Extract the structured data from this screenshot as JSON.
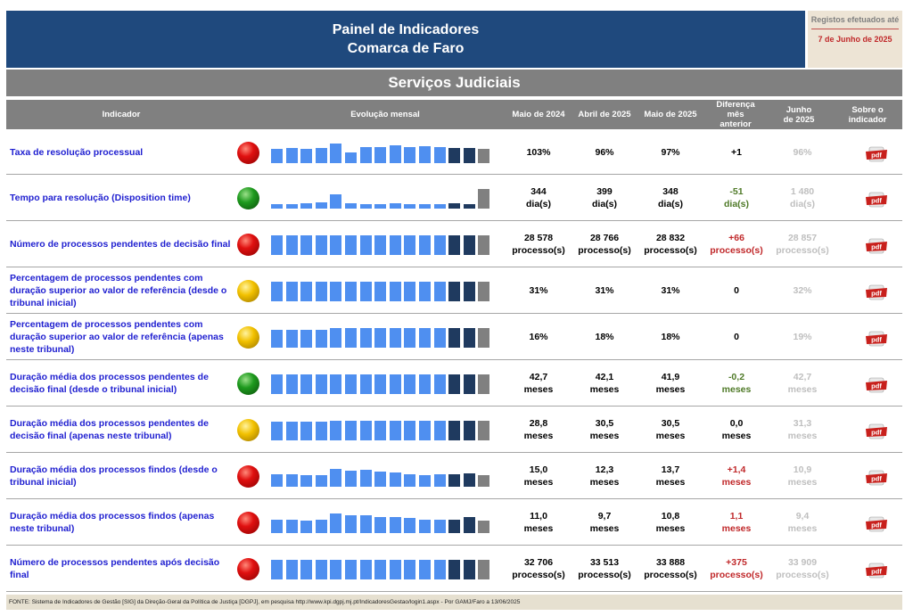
{
  "header": {
    "title1": "Painel de Indicadores",
    "title2": "Comarca de Faro"
  },
  "registos": {
    "label": "Registos efetuados até",
    "date": "7 de Junho de 2025"
  },
  "section_title": "Serviços Judiciais",
  "columns": {
    "indicador": "Indicador",
    "evolucao": "Evolução mensal",
    "c1": "Maio de 2024",
    "c2": "Abril de 2025",
    "c3": "Maio de 2025",
    "c4": "Diferença mês anterior",
    "c5": "Junho de 2025",
    "c6": "Sobre o indicador"
  },
  "rows": [
    {
      "name": "Taxa de resolução processual",
      "status": "red",
      "trend": [
        0.75,
        0.78,
        0.74,
        0.78,
        1.0,
        0.55,
        0.82,
        0.82,
        0.92,
        0.8,
        0.86,
        0.84,
        0.78,
        0.78,
        0.74
      ],
      "v1": "103%",
      "v2": "96%",
      "v3": "97%",
      "diff": "+1",
      "diff_color": "black",
      "jun": "96%"
    },
    {
      "name": "Tempo para resolução (Disposition time)",
      "status": "green",
      "trend": [
        0.25,
        0.25,
        0.28,
        0.3,
        0.72,
        0.27,
        0.22,
        0.24,
        0.26,
        0.22,
        0.24,
        0.24,
        0.28,
        0.25,
        1.0
      ],
      "v1": "344\ndia(s)",
      "v2": "399\ndia(s)",
      "v3": "348\ndia(s)",
      "diff": "-51\ndia(s)",
      "diff_color": "green",
      "jun": "1 480\ndia(s)"
    },
    {
      "name": "Número de processos pendentes de decisão final",
      "status": "red",
      "trend": [
        1,
        1,
        1,
        1,
        1,
        1,
        1,
        1,
        1,
        1,
        1,
        1,
        1,
        1,
        1
      ],
      "v1": "28 578\nprocesso(s)",
      "v2": "28 766\nprocesso(s)",
      "v3": "28 832\nprocesso(s)",
      "diff": "+66\nprocesso(s)",
      "diff_color": "red",
      "jun": "28 857\nprocesso(s)"
    },
    {
      "name": "Percentagem de processos pendentes com duração superior ao valor de referência (desde o tribunal inicial)",
      "status": "yellow",
      "trend": [
        1,
        1,
        1,
        1,
        1,
        1,
        1,
        1,
        1,
        1,
        1,
        1,
        1,
        1,
        1
      ],
      "v1": "31%",
      "v2": "31%",
      "v3": "31%",
      "diff": "0",
      "diff_color": "black",
      "jun": "32%"
    },
    {
      "name": "Percentagem de processos pendentes com duração superior ao valor de referência (apenas neste tribunal)",
      "status": "yellow",
      "trend": [
        0.92,
        0.92,
        0.92,
        0.92,
        1,
        1,
        1,
        1,
        1,
        1,
        1,
        1,
        1,
        1,
        1
      ],
      "v1": "16%",
      "v2": "18%",
      "v3": "18%",
      "diff": "0",
      "diff_color": "black",
      "jun": "19%"
    },
    {
      "name": "Duração média dos processos pendentes de decisão final (desde o tribunal inicial)",
      "status": "green",
      "trend": [
        1,
        1,
        1,
        1,
        1,
        1,
        1,
        1,
        1,
        1,
        1,
        1,
        1,
        1,
        1
      ],
      "v1": "42,7\nmeses",
      "v2": "42,1\nmeses",
      "v3": "41,9\nmeses",
      "diff": "-0,2\nmeses",
      "diff_color": "green",
      "jun": "42,7\nmeses"
    },
    {
      "name": "Duração média dos processos pendentes de decisão final (apenas neste tribunal)",
      "status": "yellow",
      "trend": [
        0.95,
        0.95,
        0.95,
        0.95,
        1,
        1,
        1,
        1,
        1,
        1,
        1,
        1,
        1,
        1,
        1
      ],
      "v1": "28,8\nmeses",
      "v2": "30,5\nmeses",
      "v3": "30,5\nmeses",
      "diff": "0,0\nmeses",
      "diff_color": "black",
      "jun": "31,3\nmeses"
    },
    {
      "name": "Duração média dos processos findos (desde o tribunal inicial)",
      "status": "red",
      "trend": [
        0.62,
        0.62,
        0.58,
        0.58,
        0.92,
        0.82,
        0.85,
        0.78,
        0.72,
        0.65,
        0.6,
        0.62,
        0.62,
        0.68,
        0.58
      ],
      "v1": "15,0\nmeses",
      "v2": "12,3\nmeses",
      "v3": "13,7\nmeses",
      "diff": "+1,4\nmeses",
      "diff_color": "red",
      "jun": "10,9\nmeses"
    },
    {
      "name": "Duração média dos processos findos (apenas neste tribunal)",
      "status": "red",
      "trend": [
        0.68,
        0.68,
        0.64,
        0.66,
        0.98,
        0.9,
        0.92,
        0.82,
        0.8,
        0.76,
        0.66,
        0.68,
        0.66,
        0.8,
        0.62
      ],
      "v1": "11,0\nmeses",
      "v2": "9,7\nmeses",
      "v3": "10,8\nmeses",
      "diff": "1,1\nmeses",
      "diff_color": "red",
      "jun": "9,4\nmeses"
    },
    {
      "name": "Número de processos pendentes após decisão final",
      "status": "red",
      "trend": [
        1,
        1,
        1,
        1,
        1,
        1,
        1,
        1,
        1,
        1,
        1,
        1,
        1,
        1,
        1
      ],
      "v1": "32 706\nprocesso(s)",
      "v2": "33 513\nprocesso(s)",
      "v3": "33 888\nprocesso(s)",
      "diff": "+375\nprocesso(s)",
      "diff_color": "red",
      "jun": "33 909\nprocesso(s)"
    }
  ],
  "pdf_label": "pdf",
  "colors": {
    "bar_light": "#4f8ff0",
    "bar_dark": "#1f3a5f",
    "bar_grey": "#808080"
  },
  "footer": "FONTE: Sistema de Indicadores de Gestão [SIG] da Direção-Geral da Política de Justiça [DGPJ], em pesquisa http://www.kpi.dgpj.mj.pt/IndicadoresGestao/login1.aspx - Por GAMJ/Faro a 13/06/2025"
}
